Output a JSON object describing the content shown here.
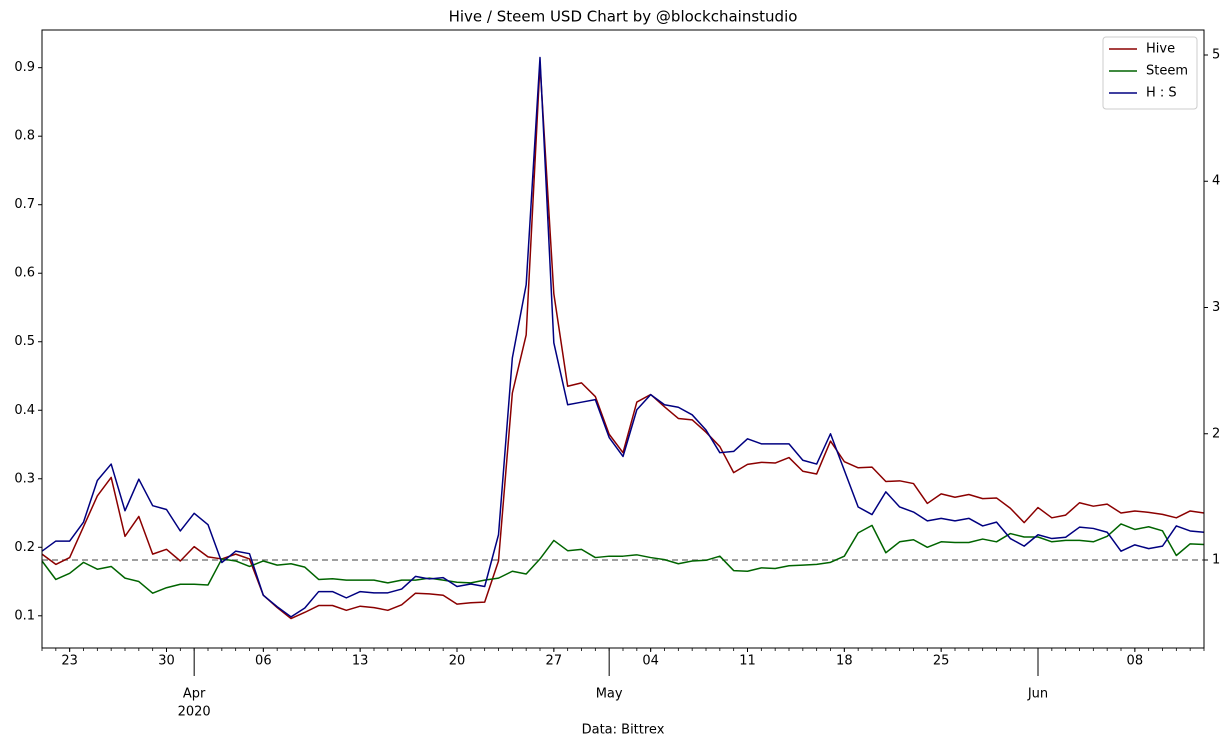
{
  "chart_data": {
    "type": "line",
    "title": "Hive / Steem USD Chart by @blockchainstudio",
    "x_label": "Data: Bittrex",
    "x": [
      "2020-03-21",
      "2020-03-22",
      "2020-03-23",
      "2020-03-24",
      "2020-03-25",
      "2020-03-26",
      "2020-03-27",
      "2020-03-28",
      "2020-03-29",
      "2020-03-30",
      "2020-03-31",
      "2020-04-01",
      "2020-04-02",
      "2020-04-03",
      "2020-04-04",
      "2020-04-05",
      "2020-04-06",
      "2020-04-07",
      "2020-04-08",
      "2020-04-09",
      "2020-04-10",
      "2020-04-11",
      "2020-04-12",
      "2020-04-13",
      "2020-04-14",
      "2020-04-15",
      "2020-04-16",
      "2020-04-17",
      "2020-04-18",
      "2020-04-19",
      "2020-04-20",
      "2020-04-21",
      "2020-04-22",
      "2020-04-23",
      "2020-04-24",
      "2020-04-25",
      "2020-04-26",
      "2020-04-27",
      "2020-04-28",
      "2020-04-29",
      "2020-04-30",
      "2020-05-01",
      "2020-05-02",
      "2020-05-03",
      "2020-05-04",
      "2020-05-05",
      "2020-05-06",
      "2020-05-07",
      "2020-05-08",
      "2020-05-09",
      "2020-05-10",
      "2020-05-11",
      "2020-05-12",
      "2020-05-13",
      "2020-05-14",
      "2020-05-15",
      "2020-05-16",
      "2020-05-17",
      "2020-05-18",
      "2020-05-19",
      "2020-05-20",
      "2020-05-21",
      "2020-05-22",
      "2020-05-23",
      "2020-05-24",
      "2020-05-25",
      "2020-05-26",
      "2020-05-27",
      "2020-05-28",
      "2020-05-29",
      "2020-05-30",
      "2020-05-31",
      "2020-06-01",
      "2020-06-02",
      "2020-06-03",
      "2020-06-04",
      "2020-06-05",
      "2020-06-06",
      "2020-06-07",
      "2020-06-08",
      "2020-06-09",
      "2020-06-10",
      "2020-06-11",
      "2020-06-12",
      "2020-06-13"
    ],
    "xlim": [
      "2020-03-21",
      "2020-06-13"
    ],
    "xticks": [
      {
        "value": "2020-03-23",
        "label": "23"
      },
      {
        "value": "2020-03-30",
        "label": "30"
      },
      {
        "value": "2020-04-06",
        "label": "06"
      },
      {
        "value": "2020-04-13",
        "label": "13"
      },
      {
        "value": "2020-04-20",
        "label": "20"
      },
      {
        "value": "2020-04-27",
        "label": "27"
      },
      {
        "value": "2020-05-04",
        "label": "04"
      },
      {
        "value": "2020-05-11",
        "label": "11"
      },
      {
        "value": "2020-05-18",
        "label": "18"
      },
      {
        "value": "2020-05-25",
        "label": "25"
      },
      {
        "value": "2020-06-08",
        "label": "08"
      }
    ],
    "xticks_major": [
      {
        "value": "2020-04-01",
        "label": "Apr",
        "sublabel": "2020"
      },
      {
        "value": "2020-05-01",
        "label": "May"
      },
      {
        "value": "2020-06-01",
        "label": "Jun"
      }
    ],
    "ylim": [
      0.053,
      0.955
    ],
    "yticks": [
      0.1,
      0.2,
      0.3,
      0.4,
      0.5,
      0.6,
      0.7,
      0.8,
      0.9
    ],
    "y2lim": [
      0.303,
      5.198
    ],
    "y2ticks": [
      1,
      2,
      3,
      4,
      5
    ],
    "hline": {
      "value": 1,
      "axis": "y2",
      "color": "#808080"
    },
    "legend": "upper right",
    "series": [
      {
        "name": "Hive",
        "color": "#8b0000",
        "values": [
          0.19,
          0.175,
          0.185,
          0.23,
          0.275,
          0.302,
          0.216,
          0.245,
          0.19,
          0.197,
          0.18,
          0.201,
          0.186,
          0.183,
          0.19,
          0.183,
          0.13,
          0.112,
          0.096,
          0.105,
          0.115,
          0.115,
          0.108,
          0.114,
          0.112,
          0.108,
          0.116,
          0.133,
          0.132,
          0.13,
          0.117,
          0.119,
          0.12,
          0.18,
          0.425,
          0.51,
          0.905,
          0.57,
          0.435,
          0.44,
          0.42,
          0.365,
          0.338,
          0.412,
          0.423,
          0.405,
          0.388,
          0.386,
          0.368,
          0.347,
          0.309,
          0.321,
          0.324,
          0.323,
          0.331,
          0.311,
          0.307,
          0.355,
          0.325,
          0.316,
          0.317,
          0.296,
          0.297,
          0.293,
          0.264,
          0.278,
          0.273,
          0.277,
          0.271,
          0.272,
          0.257,
          0.236,
          0.258,
          0.243,
          0.247,
          0.265,
          0.26,
          0.263,
          0.25,
          0.253,
          0.251,
          0.248,
          0.243,
          0.253,
          0.25
        ]
      },
      {
        "name": "Steem",
        "color": "#006400",
        "values": [
          0.18,
          0.153,
          0.162,
          0.178,
          0.168,
          0.172,
          0.155,
          0.15,
          0.133,
          0.141,
          0.146,
          0.146,
          0.145,
          0.183,
          0.18,
          0.172,
          0.18,
          0.174,
          0.176,
          0.171,
          0.153,
          0.154,
          0.152,
          0.152,
          0.152,
          0.148,
          0.152,
          0.152,
          0.155,
          0.152,
          0.149,
          0.148,
          0.152,
          0.155,
          0.165,
          0.161,
          0.183,
          0.21,
          0.195,
          0.197,
          0.185,
          0.187,
          0.187,
          0.189,
          0.185,
          0.182,
          0.176,
          0.18,
          0.181,
          0.187,
          0.166,
          0.165,
          0.17,
          0.169,
          0.173,
          0.174,
          0.175,
          0.178,
          0.187,
          0.221,
          0.232,
          0.192,
          0.208,
          0.211,
          0.2,
          0.208,
          0.207,
          0.207,
          0.212,
          0.208,
          0.22,
          0.215,
          0.215,
          0.208,
          0.21,
          0.21,
          0.208,
          0.216,
          0.234,
          0.226,
          0.23,
          0.224,
          0.188,
          0.205,
          0.204
        ]
      },
      {
        "name": "H : S",
        "color": "#000080",
        "axis": "y2",
        "values": [
          1.07,
          1.15,
          1.15,
          1.3,
          1.63,
          1.76,
          1.39,
          1.64,
          1.43,
          1.4,
          1.23,
          1.37,
          1.28,
          0.98,
          1.07,
          1.05,
          0.72,
          0.63,
          0.55,
          0.62,
          0.75,
          0.75,
          0.7,
          0.75,
          0.74,
          0.74,
          0.77,
          0.87,
          0.85,
          0.86,
          0.79,
          0.81,
          0.79,
          1.2,
          2.6,
          3.18,
          4.98,
          2.72,
          2.23,
          2.25,
          2.27,
          1.97,
          1.82,
          2.19,
          2.31,
          2.23,
          2.21,
          2.15,
          2.03,
          1.85,
          1.86,
          1.96,
          1.92,
          1.92,
          1.92,
          1.79,
          1.76,
          2.0,
          1.71,
          1.42,
          1.36,
          1.54,
          1.42,
          1.38,
          1.31,
          1.33,
          1.31,
          1.33,
          1.27,
          1.3,
          1.17,
          1.11,
          1.2,
          1.17,
          1.18,
          1.26,
          1.25,
          1.22,
          1.07,
          1.12,
          1.09,
          1.11,
          1.27,
          1.23,
          1.22
        ]
      }
    ]
  }
}
